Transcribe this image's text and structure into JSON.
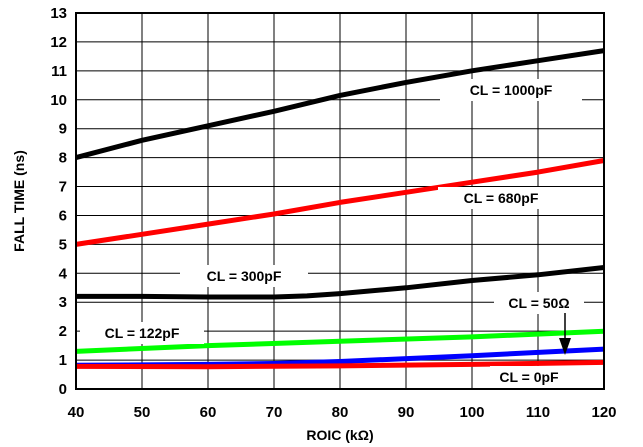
{
  "chart_data": {
    "type": "line",
    "title": "",
    "xlabel": "ROIC (kΩ)",
    "ylabel": "FALL TIME (ns)",
    "xlim": [
      40,
      120
    ],
    "ylim": [
      0,
      13
    ],
    "xticks": [
      "40",
      "50",
      "60",
      "70",
      "80",
      "90",
      "100",
      "110",
      "120"
    ],
    "yticks": [
      "0",
      "1",
      "2",
      "3",
      "4",
      "5",
      "6",
      "7",
      "8",
      "9",
      "10",
      "11",
      "12",
      "13"
    ],
    "grid": true,
    "series": [
      {
        "name": "CL = 1000pF",
        "color": "#000000",
        "x": [
          40,
          50,
          60,
          70,
          80,
          90,
          100,
          110,
          120
        ],
        "y": [
          8.0,
          8.6,
          9.1,
          9.6,
          10.15,
          10.6,
          11.0,
          11.35,
          11.7
        ]
      },
      {
        "name": "CL = 680pF",
        "color": "#ff0000",
        "x": [
          40,
          50,
          60,
          70,
          80,
          90,
          100,
          110,
          120
        ],
        "y": [
          5.0,
          5.35,
          5.7,
          6.05,
          6.45,
          6.8,
          7.15,
          7.5,
          7.9
        ]
      },
      {
        "name": "CL = 300pF",
        "color": "#000000",
        "x": [
          40,
          50,
          60,
          70,
          75,
          80,
          90,
          100,
          110,
          120
        ],
        "y": [
          3.2,
          3.2,
          3.18,
          3.18,
          3.22,
          3.3,
          3.5,
          3.75,
          3.95,
          4.2
        ]
      },
      {
        "name": "CL = 122pF",
        "color": "#00ff00",
        "x": [
          40,
          60,
          80,
          100,
          120
        ],
        "y": [
          1.3,
          1.5,
          1.65,
          1.8,
          2.0
        ]
      },
      {
        "name": "CL = 50Ω",
        "color": "#0000ff",
        "x": [
          40,
          60,
          70,
          80,
          100,
          120
        ],
        "y": [
          0.82,
          0.85,
          0.88,
          0.95,
          1.15,
          1.38
        ]
      },
      {
        "name": "CL = 0pF",
        "color": "#ff0000",
        "x": [
          40,
          60,
          80,
          100,
          120
        ],
        "y": [
          0.78,
          0.77,
          0.8,
          0.85,
          0.92
        ]
      }
    ]
  }
}
